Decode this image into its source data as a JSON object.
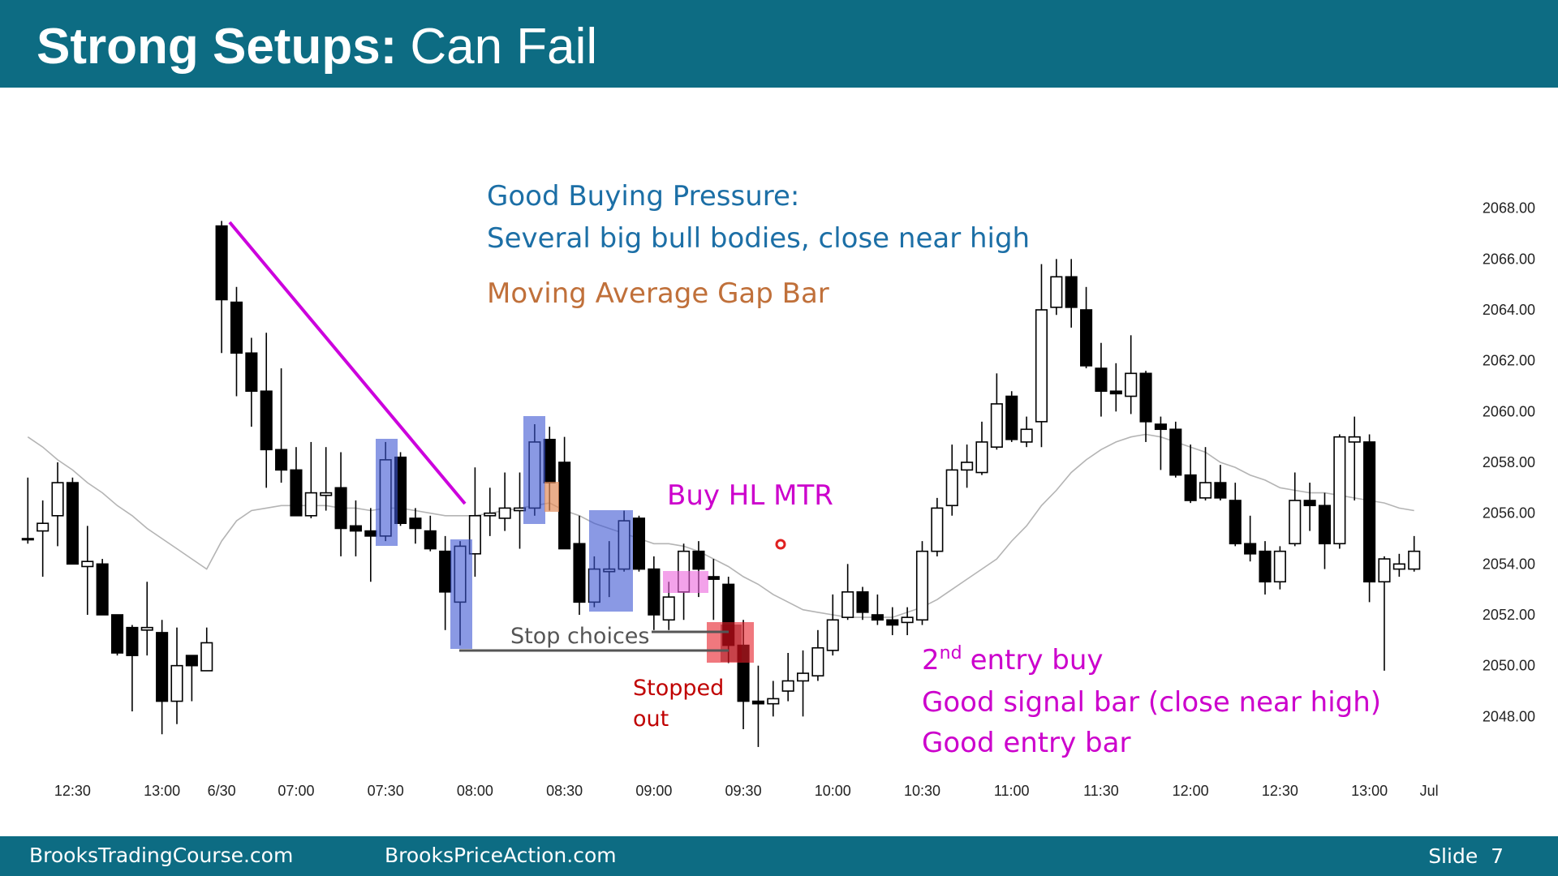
{
  "header": {
    "title_strong": "Strong Setups:",
    "title_rest": "Can Fail"
  },
  "chart_data": {
    "type": "candlestick",
    "categories": [
      null,
      null,
      null,
      "12:30",
      null,
      null,
      null,
      null,
      null,
      "13:00",
      null,
      null,
      null,
      "6/30",
      null,
      null,
      null,
      null,
      "07:00",
      null,
      null,
      null,
      null,
      null,
      "07:30",
      null,
      null,
      null,
      null,
      null,
      "08:00",
      null,
      null,
      null,
      null,
      null,
      "08:30",
      null,
      null,
      null,
      null,
      null,
      "09:00",
      null,
      null,
      null,
      null,
      null,
      "09:30",
      null,
      null,
      null,
      null,
      null,
      "10:00",
      null,
      null,
      null,
      null,
      null,
      "10:30",
      null,
      null,
      null,
      null,
      null,
      "11:00",
      null,
      null,
      null,
      null,
      null,
      "11:30",
      null,
      null,
      null,
      null,
      null,
      "12:00",
      null,
      null,
      null,
      null,
      null,
      "12:30",
      null,
      null,
      null,
      null,
      null,
      "13:00",
      null,
      null,
      null,
      "Jul"
    ],
    "open": [
      2055.0,
      2055.3,
      2055.9,
      2057.2,
      2053.9,
      2054.0,
      2052.0,
      2051.5,
      2051.4,
      2051.3,
      2048.6,
      2050.4,
      2049.8,
      2067.3,
      2064.3,
      2062.3,
      2060.8,
      2058.5,
      2057.7,
      2055.9,
      2056.7,
      2057.0,
      2055.5,
      2055.3,
      2055.1,
      2058.2,
      2055.8,
      2055.3,
      2054.5,
      2052.5,
      2054.4,
      2055.9,
      2055.8,
      2056.1,
      2056.2,
      2058.9,
      2058.0,
      2054.8,
      2052.5,
      2053.7,
      2053.8,
      2055.8,
      2053.8,
      2051.8,
      2052.9,
      2054.5,
      2053.5,
      2053.2,
      2050.8,
      2048.6,
      2048.5,
      2049.0,
      2049.4,
      2049.6,
      2050.6,
      2051.9,
      2052.9,
      2052.0,
      2051.8,
      2051.7,
      2051.8,
      2054.5,
      2056.3,
      2057.7,
      2057.6,
      2058.6,
      2060.6,
      2058.8,
      2059.6,
      2064.1,
      2065.3,
      2064.0,
      2061.7,
      2060.8,
      2060.6,
      2061.5,
      2059.5,
      2059.3,
      2057.5,
      2056.6,
      2057.2,
      2056.5,
      2054.8,
      2054.5,
      2053.3,
      2054.8,
      2056.5,
      2056.3,
      2054.8,
      2058.8,
      2058.8,
      2053.3,
      2053.8,
      2053.8,
      null
    ],
    "high": [
      2057.4,
      2056.5,
      2058.0,
      2057.4,
      2055.5,
      2054.2,
      2052.0,
      2051.6,
      2053.3,
      2051.8,
      2051.5,
      2050.4,
      2051.5,
      2067.5,
      2064.9,
      2062.9,
      2063.1,
      2061.7,
      2058.6,
      2058.8,
      2058.6,
      2058.4,
      2056.5,
      2056.2,
      2058.8,
      2058.4,
      2056.2,
      2055.9,
      2055.1,
      2054.9,
      2057.8,
      2057.0,
      2057.6,
      2057.6,
      2059.5,
      2059.4,
      2059.0,
      2055.9,
      2054.3,
      2054.9,
      2056.1,
      2055.9,
      2054.3,
      2053.3,
      2054.8,
      2054.9,
      2054.2,
      2053.5,
      2051.8,
      2050.0,
      2049.4,
      2050.5,
      2050.6,
      2051.4,
      2052.8,
      2054.0,
      2053.1,
      2052.8,
      2052.3,
      2052.3,
      2054.9,
      2056.6,
      2058.7,
      2058.7,
      2059.6,
      2061.5,
      2060.8,
      2059.8,
      2065.8,
      2066.0,
      2066.0,
      2064.9,
      2062.7,
      2061.9,
      2063.0,
      2061.6,
      2059.8,
      2059.6,
      2058.7,
      2058.6,
      2057.9,
      2057.2,
      2055.9,
      2054.9,
      2054.7,
      2057.6,
      2057.2,
      2056.8,
      2059.1,
      2059.8,
      2059.1,
      2054.3,
      2054.4,
      2055.1,
      null
    ],
    "low": [
      2054.8,
      2053.5,
      2054.7,
      2054.0,
      2052.0,
      2052.0,
      2050.4,
      2048.2,
      2050.4,
      2047.3,
      2047.7,
      2048.6,
      2049.8,
      2062.3,
      2060.6,
      2059.4,
      2057.0,
      2057.2,
      2055.9,
      2055.8,
      2056.1,
      2054.3,
      2054.3,
      2053.3,
      2054.9,
      2055.5,
      2054.8,
      2054.5,
      2051.4,
      2050.8,
      2053.5,
      2055.1,
      2055.3,
      2054.6,
      2055.9,
      2056.1,
      2054.6,
      2052.0,
      2052.3,
      2052.7,
      2053.7,
      2053.7,
      2051.4,
      2051.4,
      2051.8,
      2052.7,
      2051.8,
      2050.1,
      2047.5,
      2046.8,
      2048.0,
      2048.6,
      2048.0,
      2049.4,
      2050.4,
      2051.8,
      2051.8,
      2051.6,
      2051.2,
      2051.2,
      2051.6,
      2054.3,
      2055.9,
      2057.0,
      2057.5,
      2058.5,
      2058.8,
      2058.6,
      2058.6,
      2063.8,
      2063.3,
      2061.7,
      2059.8,
      2060.0,
      2059.9,
      2058.8,
      2057.7,
      2057.4,
      2056.4,
      2056.5,
      2056.5,
      2054.7,
      2054.1,
      2052.8,
      2053.0,
      2054.7,
      2055.3,
      2053.8,
      2054.6,
      2056.5,
      2052.5,
      2049.8,
      2053.5,
      2053.7,
      null
    ],
    "close": [
      2055.0,
      2055.6,
      2057.2,
      2054.0,
      2054.1,
      2052.0,
      2050.5,
      2050.4,
      2051.5,
      2048.6,
      2050.0,
      2050.0,
      2050.9,
      2064.4,
      2062.3,
      2060.8,
      2058.5,
      2057.7,
      2055.9,
      2056.8,
      2056.8,
      2055.4,
      2055.3,
      2055.1,
      2058.1,
      2055.6,
      2055.4,
      2054.6,
      2052.9,
      2054.7,
      2055.9,
      2056.0,
      2056.2,
      2056.2,
      2058.8,
      2057.2,
      2054.6,
      2052.5,
      2053.8,
      2053.8,
      2055.7,
      2053.8,
      2052.0,
      2052.7,
      2054.5,
      2053.8,
      2053.4,
      2050.8,
      2048.6,
      2048.5,
      2048.7,
      2049.4,
      2049.7,
      2050.7,
      2051.8,
      2052.9,
      2052.1,
      2051.8,
      2051.6,
      2051.9,
      2054.5,
      2056.2,
      2057.7,
      2058.0,
      2058.8,
      2060.3,
      2058.9,
      2059.3,
      2064.0,
      2065.3,
      2064.1,
      2061.8,
      2060.8,
      2060.7,
      2061.5,
      2059.6,
      2059.3,
      2057.5,
      2056.5,
      2057.2,
      2056.6,
      2054.8,
      2054.4,
      2053.3,
      2054.5,
      2056.5,
      2056.3,
      2054.8,
      2059.0,
      2059.0,
      2053.3,
      2054.2,
      2054.0,
      2054.5,
      null
    ],
    "moving_average": [
      2059.0,
      2058.6,
      2058.1,
      2057.7,
      2057.2,
      2056.8,
      2056.3,
      2055.9,
      2055.4,
      2055.0,
      2054.6,
      2054.2,
      2053.8,
      2054.9,
      2055.7,
      2056.1,
      2056.2,
      2056.3,
      2056.3,
      2056.3,
      2056.3,
      2056.2,
      2056.2,
      2056.1,
      2056.2,
      2056.2,
      2056.1,
      2056.0,
      2055.9,
      2055.9,
      2055.9,
      2056.0,
      2056.1,
      2056.2,
      2056.3,
      2056.4,
      2056.1,
      2055.9,
      2055.6,
      2055.4,
      2055.2,
      2055.0,
      2054.8,
      2054.8,
      2054.7,
      2054.5,
      2054.2,
      2053.9,
      2053.5,
      2053.2,
      2052.8,
      2052.5,
      2052.2,
      2052.1,
      2052.0,
      2051.9,
      2051.9,
      2051.9,
      2051.9,
      2052.1,
      2052.3,
      2052.6,
      2053.0,
      2053.4,
      2053.8,
      2054.2,
      2054.9,
      2055.5,
      2056.3,
      2056.9,
      2057.6,
      2058.1,
      2058.5,
      2058.8,
      2059.0,
      2059.1,
      2059.0,
      2058.8,
      2058.6,
      2058.4,
      2058.0,
      2057.8,
      2057.5,
      2057.3,
      2057.0,
      2056.9,
      2056.8,
      2056.8,
      2056.7,
      2056.6,
      2056.5,
      2056.4,
      2056.2,
      2056.1,
      null
    ],
    "up_color": "#ffffff",
    "down_color": "#000000",
    "ma_color": "#b4b4b4",
    "ylim": [
      2046,
      2070
    ],
    "yticks": [
      {
        "value": 2048,
        "label": "2048.00"
      },
      {
        "value": 2050,
        "label": "2050.00"
      },
      {
        "value": 2052,
        "label": "2052.00"
      },
      {
        "value": 2054,
        "label": "2054.00"
      },
      {
        "value": 2056,
        "label": "2056.00"
      },
      {
        "value": 2058,
        "label": "2058.00"
      },
      {
        "value": 2060,
        "label": "2060.00"
      },
      {
        "value": 2062,
        "label": "2062.00"
      },
      {
        "value": 2064,
        "label": "2064.00"
      },
      {
        "value": 2066,
        "label": "2066.00"
      },
      {
        "value": 2068,
        "label": "2068.00"
      }
    ],
    "annotations": {
      "pressure_title": "Good Buying Pressure:",
      "pressure_detail": "Several big bull bodies, close near high",
      "gap_bar": "Moving Average Gap Bar",
      "buy_signal": "Buy HL MTR",
      "stop_choices": "Stop choices",
      "stopped": "Stopped",
      "out": "out",
      "entry_number": "2",
      "entry_suffix": "nd",
      "entry_text": "entry buy",
      "signal_bar": "Good signal bar (close near high)",
      "entry_bar": "Good entry bar"
    }
  },
  "footer": {
    "left": "BrooksTradingCourse.com",
    "center": "BrooksPriceAction.com",
    "slide": "Slide  7"
  }
}
